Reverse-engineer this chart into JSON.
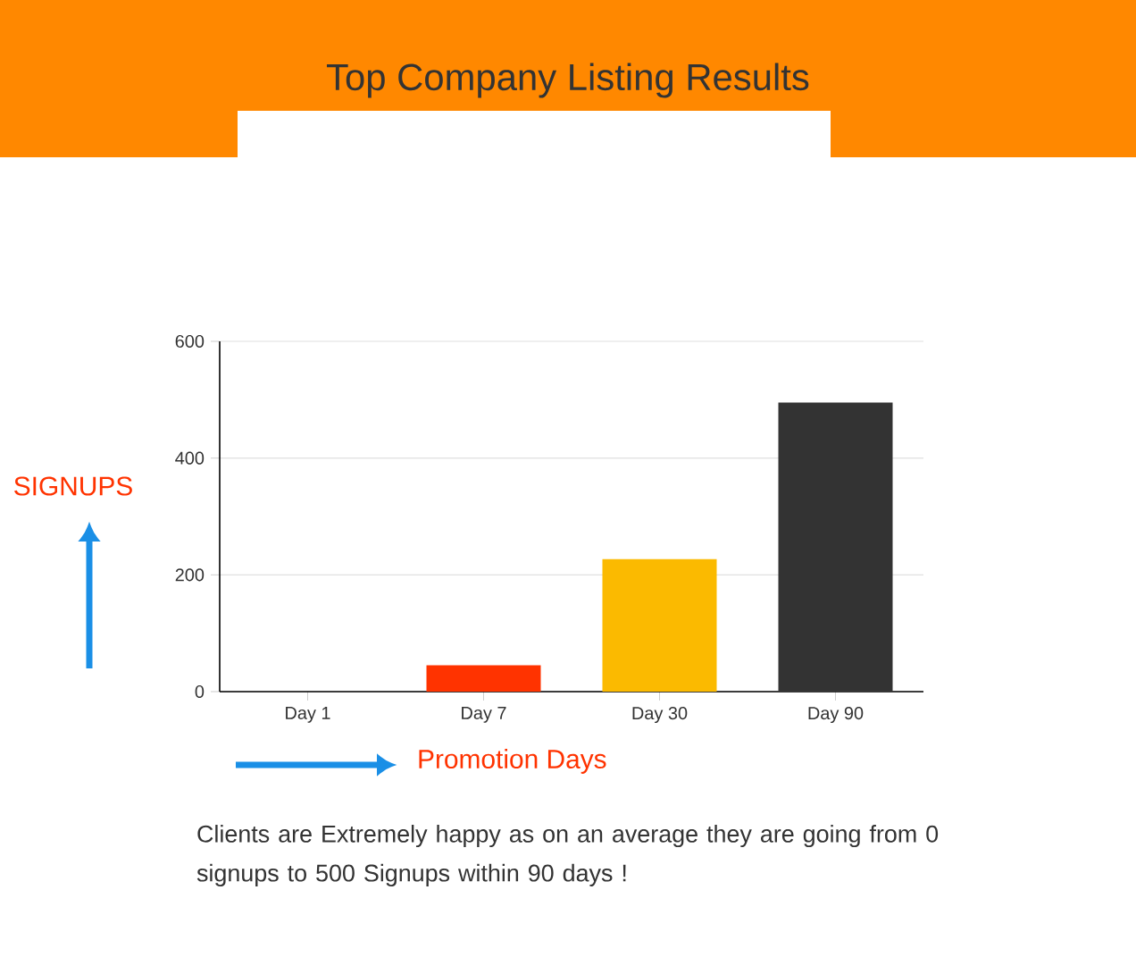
{
  "chart_data": {
    "type": "bar",
    "title": "Top Company Listing Results",
    "xlabel": "Promotion Days",
    "ylabel": "SIGNUPS",
    "categories": [
      "Day 1",
      "Day 7",
      "Day 30",
      "Day 90"
    ],
    "values": [
      0,
      45,
      227,
      495
    ],
    "colors": [
      "#ff3300",
      "#ff3300",
      "#fbba00",
      "#333333"
    ],
    "ylim": [
      0,
      600
    ],
    "yticks": [
      0,
      200,
      400,
      600
    ],
    "grid": "y",
    "annotations": [
      "Clients are Extremely happy as on an average they are going from 0 signups to 500 Signups within 90 days !"
    ]
  }
}
